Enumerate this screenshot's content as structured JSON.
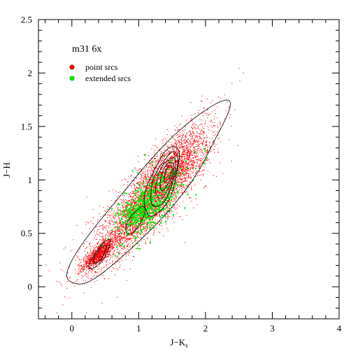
{
  "chart_data": {
    "type": "scatter",
    "title": "m31 6x",
    "xlabel": "J−K",
    "xlabel_sub": "s",
    "ylabel": "J−H",
    "xlim": [
      -0.5,
      4.0
    ],
    "ylim": [
      -0.3,
      2.5
    ],
    "x_ticks": [
      0,
      1,
      2,
      3,
      4
    ],
    "x_tick_labels": [
      "0",
      "1",
      "2",
      "3",
      "4"
    ],
    "y_ticks": [
      0,
      0.5,
      1,
      1.5,
      2,
      2.5
    ],
    "y_tick_labels": [
      "0",
      "0.5",
      "1",
      "1.5",
      "2",
      "2.5"
    ],
    "grid": false,
    "legend_position": "top-left",
    "series": [
      {
        "name": "point srcs",
        "color": "#ff0000",
        "marker": "dot",
        "clusters": [
          {
            "cx": 0.4,
            "cy": 0.3,
            "sx": 0.12,
            "sy": 0.07,
            "rho": 0.8,
            "n": 900
          },
          {
            "cx": 0.9,
            "cy": 0.6,
            "sx": 0.35,
            "sy": 0.22,
            "rho": 0.85,
            "n": 1400
          },
          {
            "cx": 1.3,
            "cy": 0.95,
            "sx": 0.35,
            "sy": 0.25,
            "rho": 0.8,
            "n": 2200
          },
          {
            "cx": 1.6,
            "cy": 1.15,
            "sx": 0.25,
            "sy": 0.2,
            "rho": 0.7,
            "n": 900
          },
          {
            "cx": 1.1,
            "cy": 0.8,
            "sx": 0.6,
            "sy": 0.4,
            "rho": 0.85,
            "n": 600
          }
        ]
      },
      {
        "name": "extended srcs",
        "color": "#00ee00",
        "marker": "dot",
        "clusters": [
          {
            "cx": 1.2,
            "cy": 0.8,
            "sx": 0.25,
            "sy": 0.18,
            "rho": 0.7,
            "n": 420
          },
          {
            "cx": 1.0,
            "cy": 0.7,
            "sx": 0.15,
            "sy": 0.08,
            "rho": 0.5,
            "n": 140
          }
        ]
      }
    ],
    "contours": [
      {
        "cx": 1.15,
        "cy": 0.85,
        "a": 1.45,
        "b": 0.27,
        "angle_deg": 35
      },
      {
        "cx": 1.35,
        "cy": 0.98,
        "a": 0.38,
        "b": 0.17,
        "angle_deg": 55
      },
      {
        "cx": 1.38,
        "cy": 1.0,
        "a": 0.3,
        "b": 0.13,
        "angle_deg": 55
      },
      {
        "cx": 1.4,
        "cy": 1.02,
        "a": 0.22,
        "b": 0.1,
        "angle_deg": 55
      },
      {
        "cx": 1.42,
        "cy": 1.04,
        "a": 0.15,
        "b": 0.07,
        "angle_deg": 55
      },
      {
        "cx": 1.44,
        "cy": 1.06,
        "a": 0.09,
        "b": 0.04,
        "angle_deg": 55
      },
      {
        "cx": 0.42,
        "cy": 0.3,
        "a": 0.2,
        "b": 0.06,
        "angle_deg": 40
      },
      {
        "cx": 0.42,
        "cy": 0.3,
        "a": 0.12,
        "b": 0.04,
        "angle_deg": 40
      },
      {
        "cx": 0.95,
        "cy": 0.62,
        "a": 0.18,
        "b": 0.07,
        "angle_deg": 40
      }
    ]
  }
}
